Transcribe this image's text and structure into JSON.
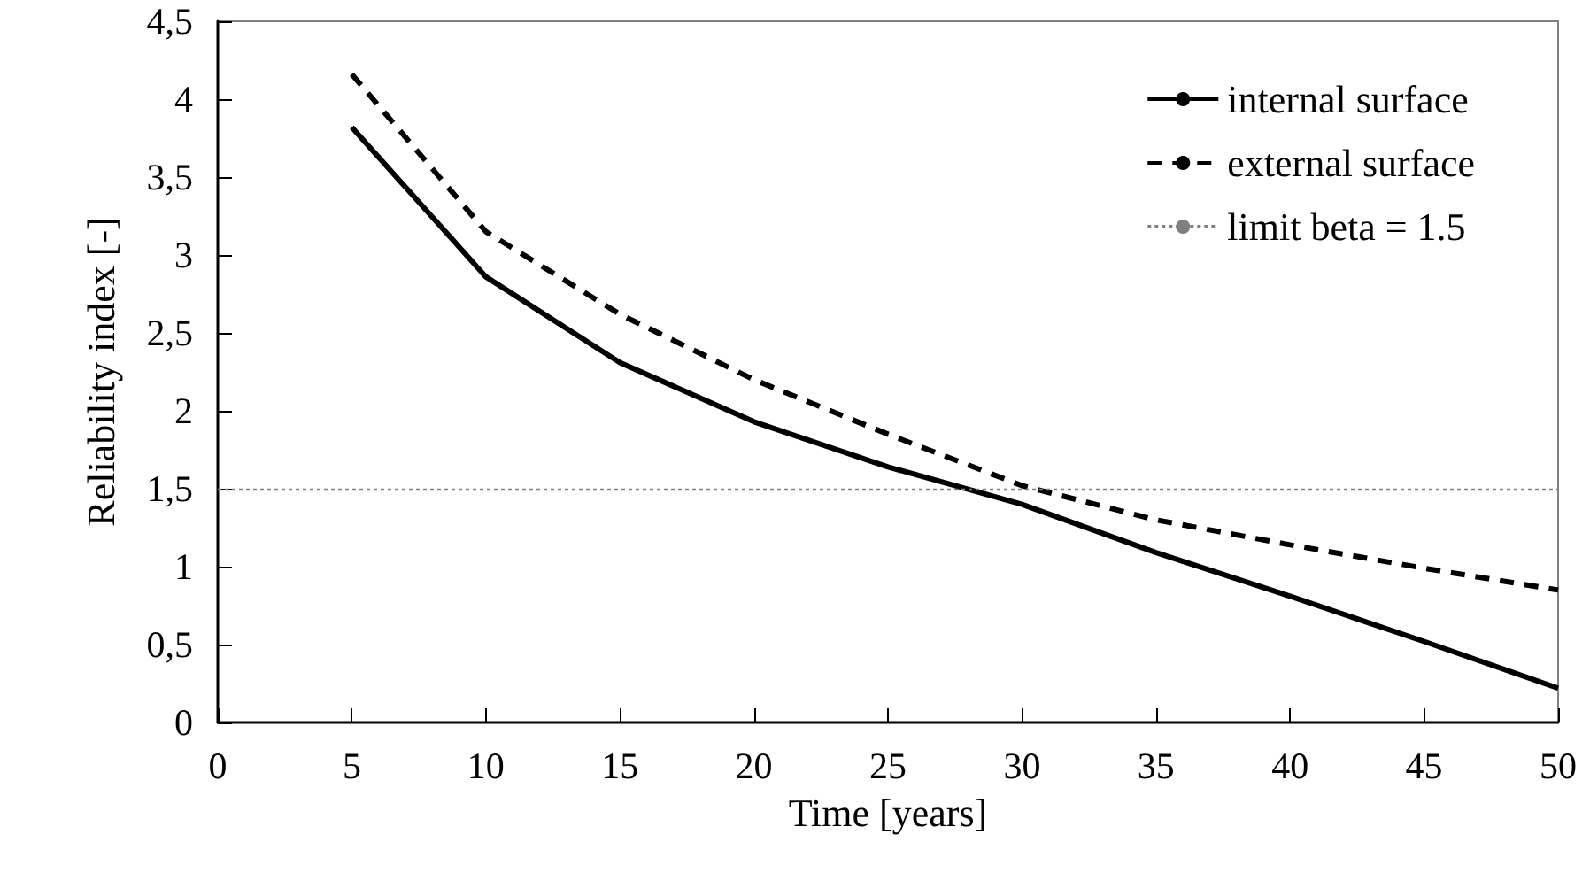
{
  "chart_data": {
    "type": "line",
    "xlabel": "Time [years]",
    "ylabel": "Reliability index [-]",
    "x": [
      5,
      10,
      15,
      20,
      25,
      30,
      35,
      40,
      45,
      50
    ],
    "series": [
      {
        "name": "internal surface",
        "color": "#000000",
        "line_style": "solid",
        "values": [
          3.82,
          2.86,
          2.31,
          1.93,
          1.64,
          1.4,
          1.09,
          0.81,
          0.52,
          0.22
        ]
      },
      {
        "name": "external surface",
        "color": "#000000",
        "line_style": "dashed",
        "values": [
          4.16,
          3.15,
          2.62,
          2.2,
          1.85,
          1.52,
          1.3,
          1.14,
          0.99,
          0.85
        ]
      }
    ],
    "xlim": [
      0,
      50
    ],
    "xticks": [
      0,
      5,
      10,
      15,
      20,
      25,
      30,
      35,
      40,
      45,
      50
    ],
    "ylim": [
      0,
      4.5
    ],
    "yticks": [
      0,
      {
        "value": 0.5,
        "label": "0,5"
      },
      1,
      {
        "value": 1.5,
        "label": "1,5"
      },
      2,
      {
        "value": 2.5,
        "label": "2,5"
      },
      3,
      {
        "value": 3.5,
        "label": "3,5"
      },
      4,
      {
        "value": 4.5,
        "label": "4,5"
      }
    ],
    "ref_lines": [
      {
        "axis": "y",
        "value": 1.5,
        "label": "limit beta = 1.5",
        "color": "#808080",
        "line_style": "dotted"
      }
    ],
    "grid": false,
    "legend": "top right",
    "marker": "none"
  }
}
